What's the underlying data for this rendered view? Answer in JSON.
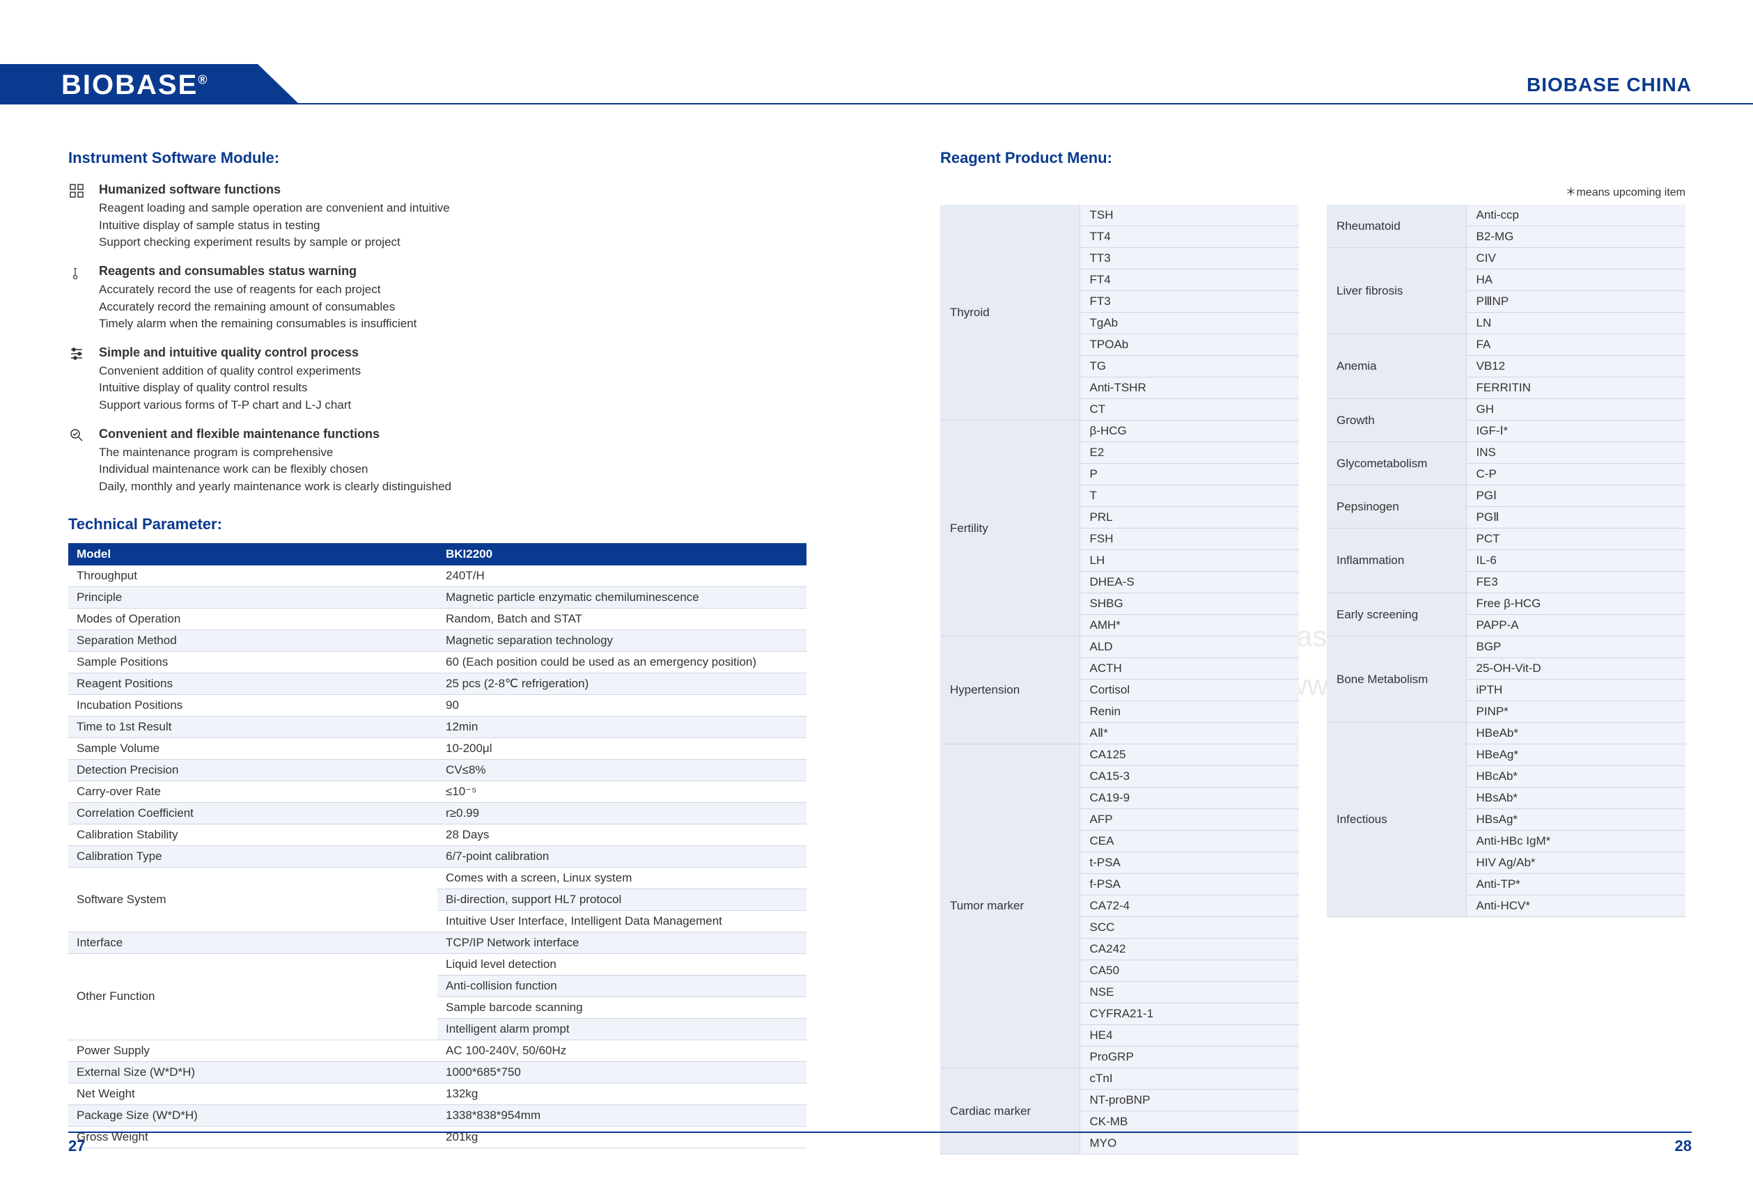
{
  "header": {
    "logo": "BIOBASE",
    "logo_suffix": "®",
    "right_text": "BIOBASE CHINA"
  },
  "left": {
    "section_title": "Instrument Software Module:",
    "features": [
      {
        "icon": "grid-icon",
        "heading": "Humanized software functions",
        "lines": [
          "Reagent loading and sample operation are convenient and intuitive",
          "Intuitive display of sample status in testing",
          "Support checking experiment results by sample or project"
        ]
      },
      {
        "icon": "thermometer-icon",
        "heading": "Reagents and consumables status warning",
        "lines": [
          "Accurately record the use of reagents for each project",
          "Accurately record the remaining amount of consumables",
          "Timely alarm when the remaining consumables is insufficient"
        ]
      },
      {
        "icon": "sliders-icon",
        "heading": "Simple and intuitive quality control process",
        "lines": [
          "Convenient addition of quality control experiments",
          "Intuitive display of quality control results",
          "Support various forms of T-P chart and L-J chart"
        ]
      },
      {
        "icon": "search-icon",
        "heading": "Convenient and flexible maintenance functions",
        "lines": [
          "The maintenance program is comprehensive",
          "Individual maintenance work can be flexibly chosen",
          "Daily, monthly and yearly maintenance work is clearly distinguished"
        ]
      }
    ],
    "tech_title": "Technical Parameter:",
    "param_table": {
      "header_cols": [
        "Model",
        "BKI2200"
      ],
      "rows": [
        {
          "label": "Throughput",
          "vals": [
            "240T/H"
          ]
        },
        {
          "label": "Principle",
          "vals": [
            "Magnetic particle enzymatic chemiluminescence"
          ]
        },
        {
          "label": "Modes of Operation",
          "vals": [
            "Random, Batch and STAT"
          ]
        },
        {
          "label": "Separation Method",
          "vals": [
            "Magnetic separation technology"
          ]
        },
        {
          "label": "Sample Positions",
          "vals": [
            "60 (Each position could be used as an emergency position)"
          ]
        },
        {
          "label": "Reagent Positions",
          "vals": [
            "25 pcs (2-8℃ refrigeration)"
          ]
        },
        {
          "label": "Incubation Positions",
          "vals": [
            "90"
          ]
        },
        {
          "label": "Time to 1st Result",
          "vals": [
            "12min"
          ]
        },
        {
          "label": "Sample Volume",
          "vals": [
            "10-200μl"
          ]
        },
        {
          "label": "Detection Precision",
          "vals": [
            "CV≤8%"
          ]
        },
        {
          "label": "Carry-over Rate",
          "vals": [
            "≤10⁻⁵"
          ]
        },
        {
          "label": "Correlation Coefficient",
          "vals": [
            "r≥0.99"
          ]
        },
        {
          "label": "Calibration Stability",
          "vals": [
            "28 Days"
          ]
        },
        {
          "label": "Calibration Type",
          "vals": [
            "6/7-point calibration"
          ]
        },
        {
          "label": "Software System",
          "rowspan": 3,
          "vals": [
            "Comes with a screen, Linux system",
            "Bi-direction, support HL7 protocol",
            "Intuitive User Interface, Intelligent Data Management"
          ]
        },
        {
          "label": "Interface",
          "vals": [
            "TCP/IP Network interface"
          ]
        },
        {
          "label": "Other Function",
          "rowspan": 4,
          "vals": [
            "Liquid level detection",
            "Anti-collision function",
            "Sample barcode scanning",
            "Intelligent alarm prompt"
          ]
        },
        {
          "label": "Power Supply",
          "vals": [
            "AC 100-240V, 50/60Hz"
          ]
        },
        {
          "label": "External Size (W*D*H)",
          "vals": [
            "1000*685*750"
          ]
        },
        {
          "label": "Net Weight",
          "vals": [
            "132kg"
          ]
        },
        {
          "label": "Package Size (W*D*H)",
          "vals": [
            "1338*838*954mm"
          ]
        },
        {
          "label": "Gross Weight",
          "vals": [
            "201kg"
          ]
        }
      ]
    }
  },
  "right": {
    "section_title": "Reagent Product Menu:",
    "upcoming_note": "＊means upcoming item",
    "col1": [
      {
        "cat": "Thyroid",
        "items": [
          "TSH",
          "TT4",
          "TT3",
          "FT4",
          "FT3",
          "TgAb",
          "TPOAb",
          "TG",
          "Anti-TSHR",
          "CT"
        ]
      },
      {
        "cat": "Fertility",
        "items": [
          "β-HCG",
          "E2",
          "P",
          "T",
          "PRL",
          "FSH",
          "LH",
          "DHEA-S",
          "SHBG",
          "AMH*"
        ]
      },
      {
        "cat": "Hypertension",
        "items": [
          "ALD",
          "ACTH",
          "Cortisol",
          "Renin",
          "AⅡ*"
        ]
      },
      {
        "cat": "Tumor marker",
        "items": [
          "CA125",
          "CA15-3",
          "CA19-9",
          "AFP",
          "CEA",
          "t-PSA",
          "f-PSA",
          "CA72-4",
          "SCC",
          "CA242",
          "CA50",
          "NSE",
          "CYFRA21-1",
          "HE4",
          "ProGRP"
        ]
      },
      {
        "cat": "Cardiac marker",
        "items": [
          "cTnI",
          "NT-proBNP",
          "CK-MB",
          "MYO"
        ]
      }
    ],
    "col2": [
      {
        "cat": "Rheumatoid",
        "items": [
          "Anti-ccp",
          "B2-MG"
        ]
      },
      {
        "cat": "Liver fibrosis",
        "items": [
          "CIV",
          "HA",
          "PⅢNP",
          "LN"
        ]
      },
      {
        "cat": "Anemia",
        "items": [
          "FA",
          "VB12",
          "FERRITIN"
        ]
      },
      {
        "cat": "Growth",
        "items": [
          "GH",
          "IGF-Ⅰ*"
        ]
      },
      {
        "cat": "Glycometabolism",
        "items": [
          "INS",
          "C-P"
        ]
      },
      {
        "cat": "Pepsinogen",
        "items": [
          "PGⅠ",
          "PGⅡ"
        ]
      },
      {
        "cat": "Inflammation",
        "items": [
          "PCT",
          "IL-6",
          "FE3"
        ]
      },
      {
        "cat": "Early screening",
        "items": [
          "Free β-HCG",
          "PAPP-A"
        ]
      },
      {
        "cat": "Bone Metabolism",
        "items": [
          "BGP",
          "25-OH-Vit-D",
          "iPTH",
          "PINP*"
        ]
      },
      {
        "cat": "Infectious",
        "items": [
          "HBeAb*",
          "HBeAg*",
          "HBcAb*",
          "HBsAb*",
          "HBsAg*",
          "Anti-HBc IgM*",
          "HIV Ag/Ab*",
          "Anti-TP*",
          "Anti-HCV*"
        ]
      }
    ]
  },
  "footer": {
    "page_left": "27",
    "page_right": "28"
  },
  "watermarks": {
    "email": "E-mail: export@biobase.com",
    "site": "www.biobase.cc / www.biobase.com"
  }
}
